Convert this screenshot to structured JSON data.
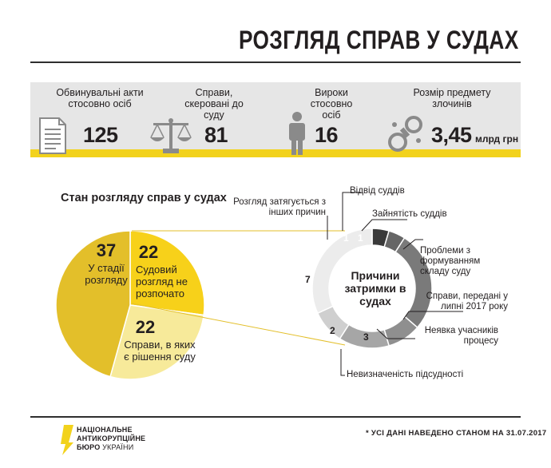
{
  "title": "РОЗГЛЯД СПРАВ У СУДАХ",
  "stats": [
    {
      "label": "Обвинувальні акти стосовно осіб",
      "value": "125",
      "unit": "",
      "icon": "document-icon"
    },
    {
      "label": "Справи, скеровані до суду",
      "value": "81",
      "unit": "",
      "icon": "scales-icon"
    },
    {
      "label": "Вироки стосовно осіб",
      "value": "16",
      "unit": "",
      "icon": "person-icon"
    },
    {
      "label": "Розмір предмету злочинів",
      "value": "3,45",
      "unit": "млрд грн",
      "icon": "handcuffs-icon"
    }
  ],
  "chart_data": [
    {
      "type": "pie",
      "title": "Стан розгляду справ у судах",
      "categories": [
        "У стадії розгляду",
        "Судовий розгляд не розпочато",
        "Справи, в яких є рішення суду"
      ],
      "values": [
        37,
        22,
        22
      ],
      "colors": [
        "#e3bf2a",
        "#f7d11a",
        "#f7ea9a"
      ]
    },
    {
      "type": "pie",
      "title": "Причини затримки в судах",
      "categories": [
        "Відвід суддів",
        "Зайнятість суддів",
        "Проблеми з формуванням складу суду",
        "Справи, передані у липні 2017 року",
        "Неявка учасників процесу",
        "Невизначеність підсудності",
        "Розгляд затягується з інших причин"
      ],
      "values": [
        1,
        1,
        6,
        2,
        3,
        2,
        7
      ],
      "colors": [
        "#3a3a3a",
        "#666666",
        "#7a7a7a",
        "#8f8f8f",
        "#a6a6a6",
        "#cfcfcf",
        "#ececec"
      ]
    }
  ],
  "footer": {
    "note": "* УСІ ДАНІ НАВЕДЕНО СТАНОМ НА 31.07.2017",
    "logo_line1": "НАЦІОНАЛЬНЕ",
    "logo_line2": "АНТИКОРУПЦІЙНЕ",
    "logo_line3": "БЮРО",
    "logo_line3b": "УКРАЇНИ"
  }
}
